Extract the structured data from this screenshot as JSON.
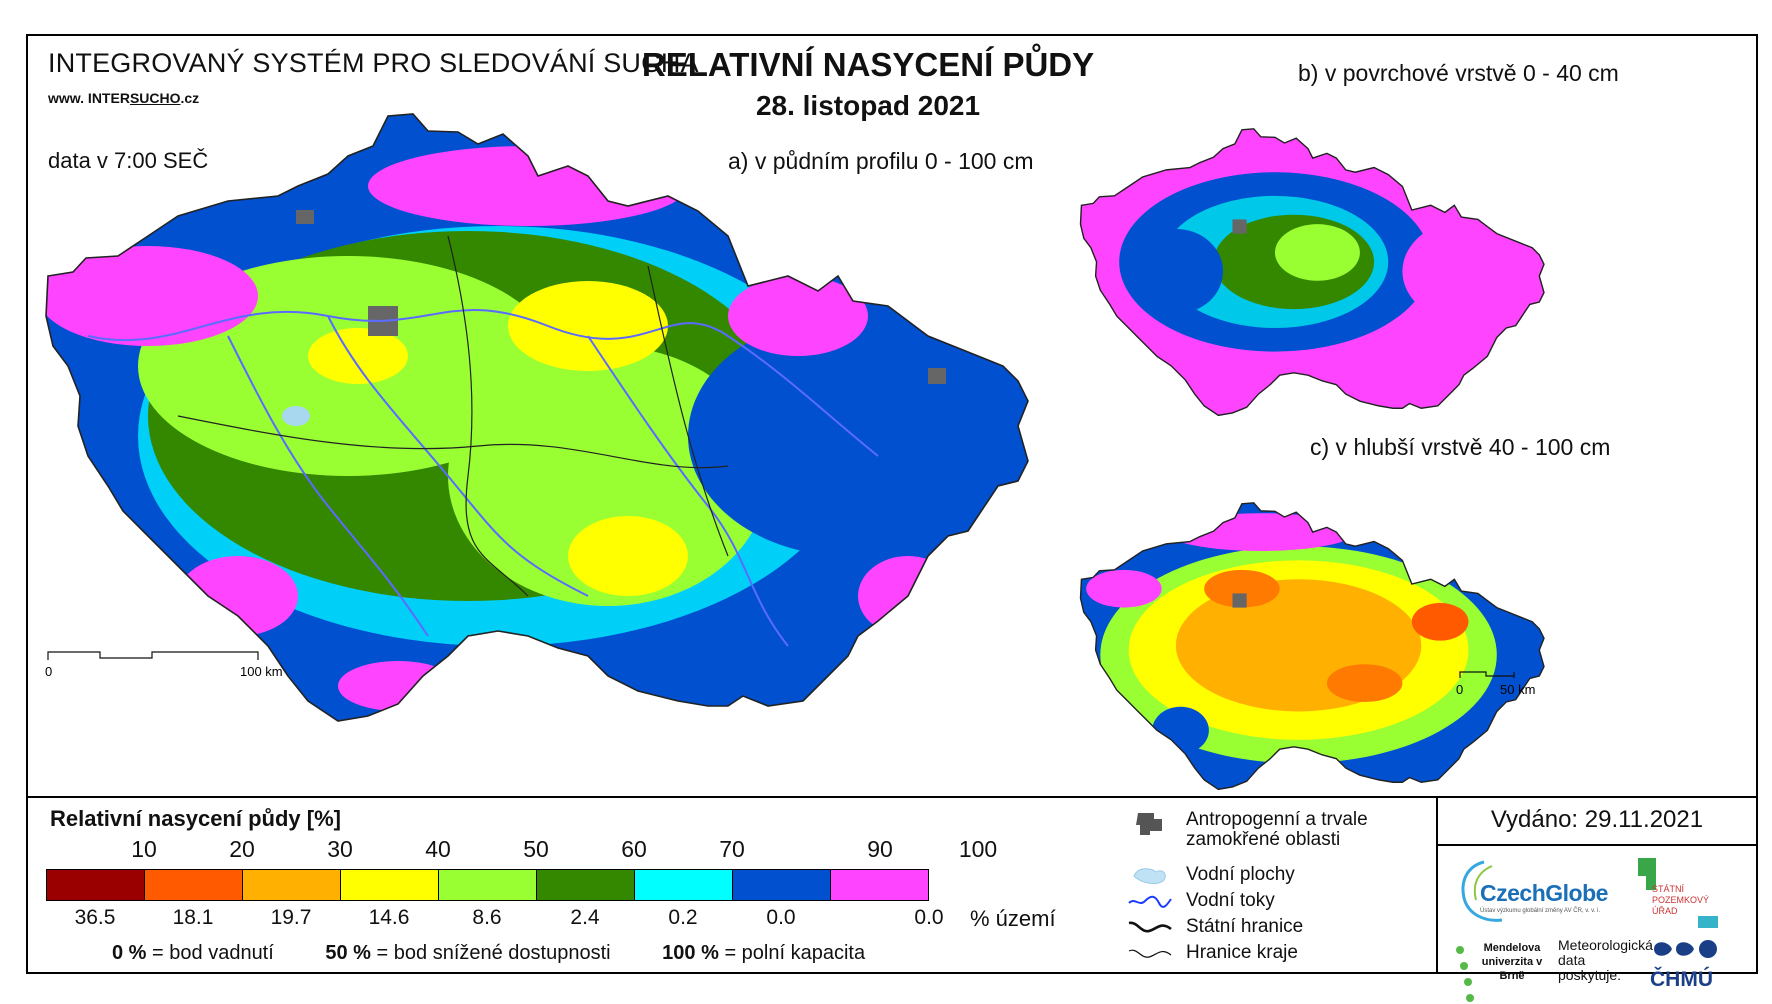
{
  "header": {
    "system": "INTEGROVANÝ SYSTÉM PRO SLEDOVÁNÍ SUCHA",
    "website_prefix": "www. INTER",
    "website_underlined": "SUCHO",
    "website_suffix": ".cz",
    "data_time": "data v 7:00 SEČ",
    "title": "RELATIVNÍ NASYCENÍ PŮDY",
    "date": "28. listopad 2021"
  },
  "maps": {
    "a_label": "a) v půdním profilu 0 - 100 cm",
    "b_label": "b) v povrchové vrstvě 0 - 40 cm",
    "c_label": "c) v hlubší vrstvě 40 - 100 cm",
    "scale_main": {
      "start": "0",
      "end": "100 km"
    },
    "scale_small": {
      "start": "0",
      "end": "50 km"
    },
    "a_dominant_class": "70-90",
    "c_dominant_class": "30-50"
  },
  "legend": {
    "title": "Relativní nasycení půdy [%]",
    "ticks": [
      "10",
      "20",
      "30",
      "40",
      "50",
      "60",
      "70",
      "90",
      "100"
    ],
    "classes": [
      {
        "color": "#9b0000",
        "territory_pct": "36.5"
      },
      {
        "color": "#ff5a00",
        "territory_pct": "18.1"
      },
      {
        "color": "#ffb000",
        "territory_pct": "19.7"
      },
      {
        "color": "#ffff00",
        "territory_pct": "14.6"
      },
      {
        "color": "#99ff33",
        "territory_pct": "8.6"
      },
      {
        "color": "#338800",
        "territory_pct": "2.4"
      },
      {
        "color": "#00ffff",
        "territory_pct": "0.2"
      },
      {
        "color": "#0050d0",
        "territory_pct": "0.0"
      },
      {
        "color": "#ff44ff",
        "territory_pct": "0.0"
      }
    ],
    "territory_unit": "% území",
    "notes": [
      {
        "value": "0 %",
        "text": "= bod vadnutí"
      },
      {
        "value": "50 %",
        "text": "= bod snížené dostupnosti"
      },
      {
        "value": "100 %",
        "text": "= polní kapacita"
      }
    ]
  },
  "symbols": {
    "anthropogenic": "Antropogenní a trvale zamokřené oblasti",
    "water_bodies": "Vodní plochy",
    "rivers": "Vodní toky",
    "state_border": "Státní hranice",
    "region_border": "Hranice kraje"
  },
  "footer": {
    "issued": "Vydáno: 29.11.2021",
    "czechglobe": "CzechGlobe",
    "czechglobe_sub": "Ústav výzkumu globální změny AV ČR, v. v. i.",
    "spu": "STÁTNÍ POZEMKOVÝ ÚŘAD",
    "mendel": "Mendelova univerzita v Brně",
    "met_data": "Meteorologická data poskytuje:",
    "chmu": "ČHMÚ"
  }
}
